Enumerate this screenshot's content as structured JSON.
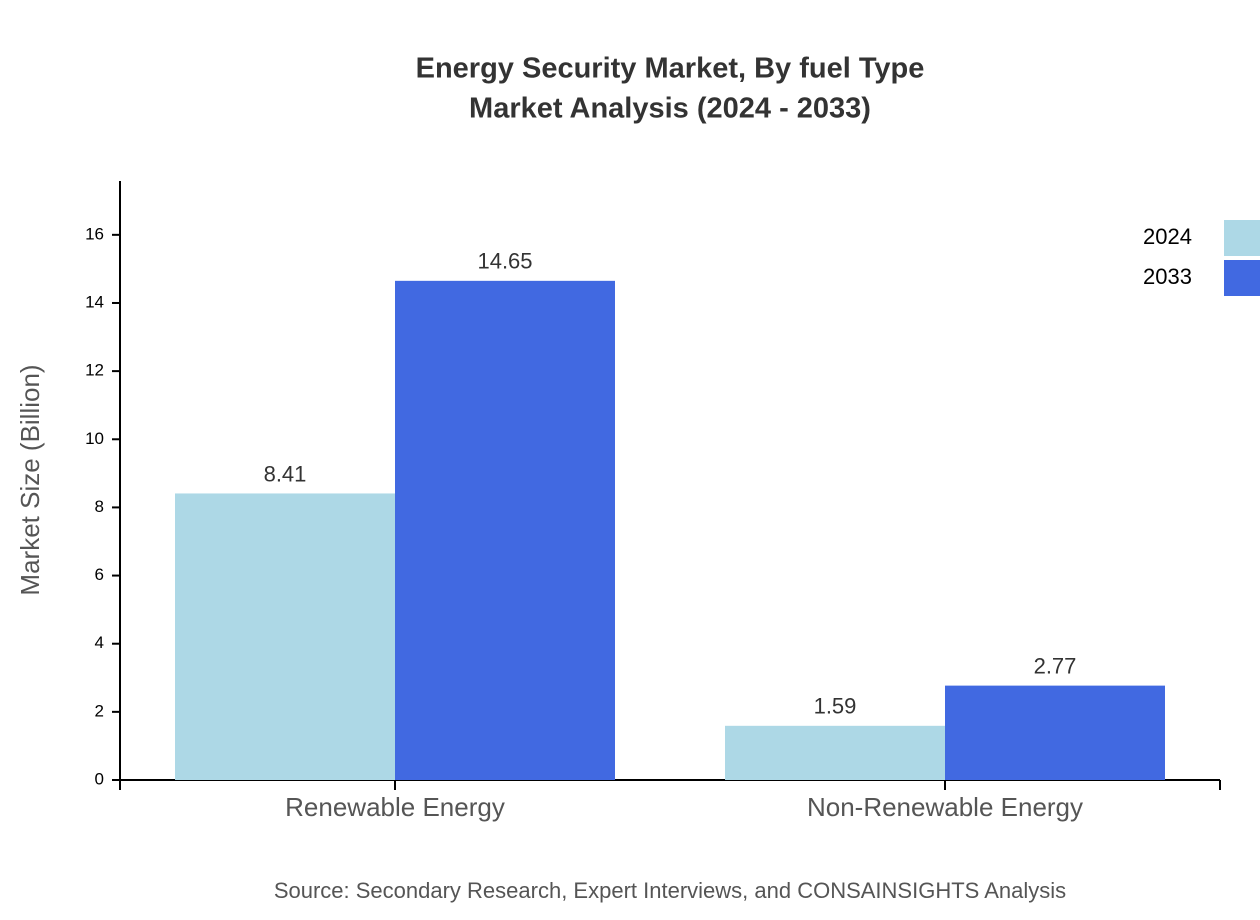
{
  "chart_data": {
    "type": "bar",
    "title": "Energy Security Market, By fuel Type",
    "subtitle": "Market Analysis (2024 - 2033)",
    "y_label": "Market Size (Billion)",
    "source": "Source: Secondary Research, Expert Interviews, and CONSAINSIGHTS Analysis",
    "categories": [
      "Renewable Energy",
      "Non-Renewable Energy"
    ],
    "series": [
      {
        "name": "2024",
        "color": "#add8e6",
        "values": [
          8.41,
          1.59
        ]
      },
      {
        "name": "2033",
        "color": "#4169e1",
        "values": [
          14.65,
          2.77
        ]
      }
    ],
    "ylim": [
      0,
      17.58
    ],
    "yticks": [
      0,
      2,
      4,
      6,
      8,
      10,
      12,
      14,
      16
    ],
    "grid": false,
    "legend": "top-right"
  }
}
